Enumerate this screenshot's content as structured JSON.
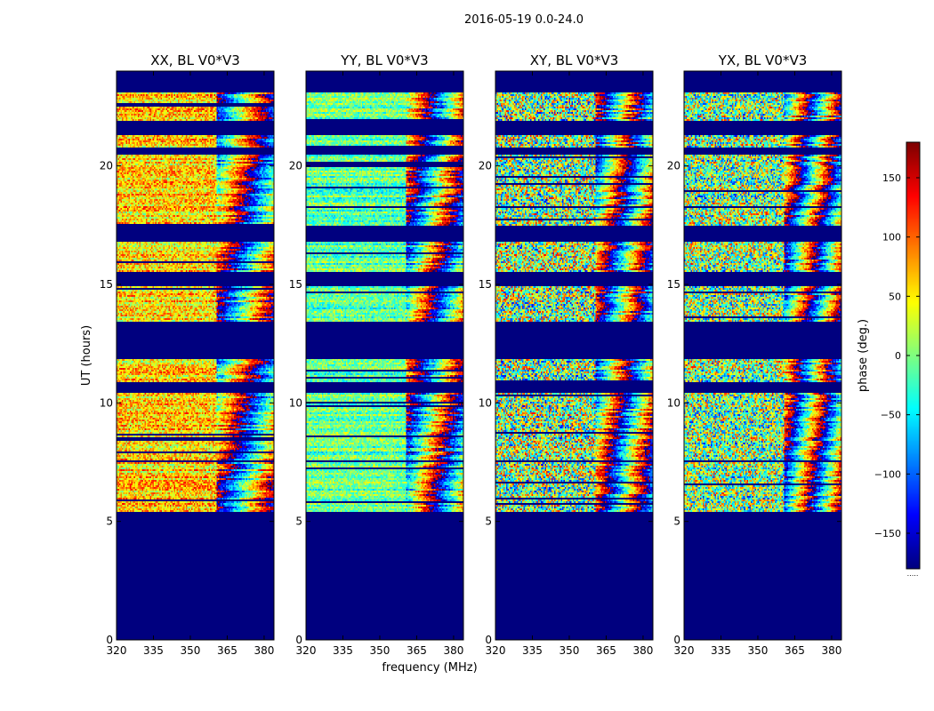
{
  "chart_data": {
    "type": "heatmap",
    "suptitle": "2016-05-19 0.0-24.0",
    "xlabel": "frequency (MHz)",
    "ylabel": "UT (hours)",
    "xlim": [
      320,
      384
    ],
    "ylim": [
      0,
      24
    ],
    "xticks": [
      320,
      335,
      350,
      365,
      380
    ],
    "yticks": [
      0,
      5,
      10,
      15,
      20
    ],
    "colorbar": {
      "label": "phase (deg.)",
      "range": [
        -180,
        180
      ],
      "ticks": [
        -150,
        -100,
        -50,
        0,
        50,
        100,
        150
      ],
      "colormap": [
        "#00007f",
        "#0000ff",
        "#0080ff",
        "#00ffff",
        "#7fff7f",
        "#ffff00",
        "#ff8000",
        "#ff0000",
        "#7f0000"
      ],
      "footer": "....."
    },
    "masked_color": "#00007f",
    "time_segments_hours": [
      [
        5.4,
        7.5
      ],
      [
        7.55,
        10.45
      ],
      [
        10.9,
        11.85
      ],
      [
        13.4,
        14.9
      ],
      [
        15.5,
        16.8
      ],
      [
        17.5,
        20.5
      ],
      [
        20.8,
        21.3
      ],
      [
        21.9,
        23.1
      ]
    ],
    "panels": [
      {
        "title": "XX, BL V0*V3",
        "mean_phase_deg": 60,
        "spread_deg": 55
      },
      {
        "title": "YY, BL V0*V3",
        "mean_phase_deg": -10,
        "spread_deg": 40
      },
      {
        "title": "XY, BL V0*V3",
        "mean_phase_deg": 0,
        "spread_deg": 120
      },
      {
        "title": "YX, BL V0*V3",
        "mean_phase_deg": 0,
        "spread_deg": 110
      }
    ]
  }
}
